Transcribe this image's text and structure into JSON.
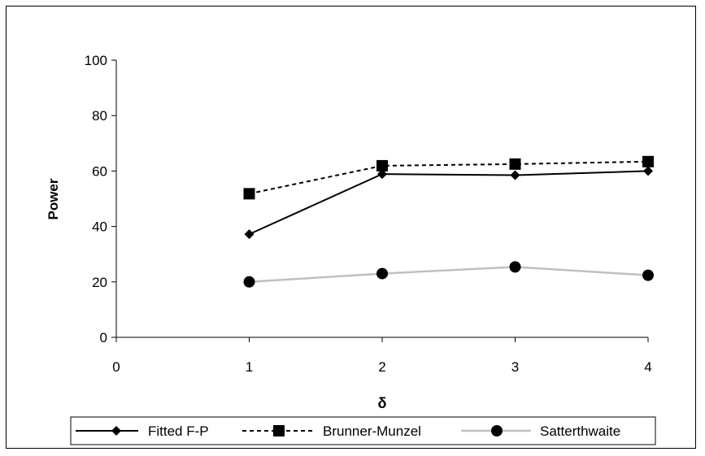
{
  "chart_data": {
    "type": "line",
    "title": "",
    "xlabel": "δ",
    "ylabel": "Power",
    "xlim": [
      0,
      4
    ],
    "ylim": [
      0,
      100
    ],
    "xticks": [
      "0",
      "1",
      "2",
      "3",
      "4"
    ],
    "yticks": [
      "0",
      "20",
      "40",
      "60",
      "80",
      "100"
    ],
    "x": [
      1,
      2,
      3,
      4
    ],
    "grid": false,
    "legend_position": "bottom",
    "series": [
      {
        "name": "Fitted F-P",
        "values": [
          37.2,
          58.9,
          58.5,
          60.0
        ],
        "color": "#000000",
        "line_style": "solid",
        "marker": "diamond"
      },
      {
        "name": "Brunner-Munzel",
        "values": [
          51.8,
          61.9,
          62.5,
          63.4
        ],
        "color": "#000000",
        "line_style": "dashed",
        "marker": "square"
      },
      {
        "name": "Satterthwaite",
        "values": [
          20.0,
          23.0,
          25.4,
          22.4
        ],
        "color": "#c0c0c0",
        "line_style": "solid",
        "marker": "circle",
        "marker_color": "#000000"
      }
    ]
  }
}
